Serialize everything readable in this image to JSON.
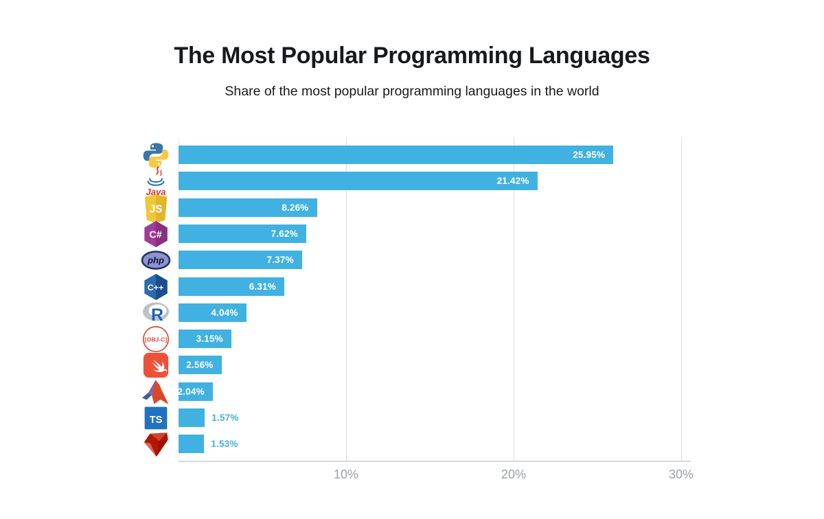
{
  "header": {
    "title": "The Most Popular Programming Languages",
    "subtitle": "Share of the most popular programming languages in the world"
  },
  "chart_data": {
    "type": "bar",
    "orientation": "horizontal",
    "title": "The Most Popular Programming Languages",
    "subtitle": "Share of the most popular programming languages in the world",
    "categories": [
      "Python",
      "Java",
      "JavaScript",
      "C#",
      "PHP",
      "C++",
      "R",
      "Objective-C",
      "Swift",
      "MATLAB",
      "TypeScript",
      "Ruby"
    ],
    "values": [
      25.95,
      21.42,
      8.26,
      7.62,
      7.37,
      6.31,
      4.04,
      3.15,
      2.56,
      2.04,
      1.57,
      1.53
    ],
    "value_labels": [
      "25.95%",
      "21.42%",
      "8.26%",
      "7.62%",
      "7.37%",
      "6.31%",
      "4.04%",
      "3.15%",
      "2.56%",
      "2.04%",
      "1.57%",
      "1.53%"
    ],
    "icons": [
      "python-icon",
      "java-icon",
      "javascript-icon",
      "csharp-icon",
      "php-icon",
      "cpp-icon",
      "r-icon",
      "objective-c-icon",
      "swift-icon",
      "matlab-icon",
      "typescript-icon",
      "ruby-icon"
    ],
    "xlabel": "",
    "ylabel": "",
    "x_ticks": [
      "10%",
      "20%",
      "30%"
    ],
    "x_tick_values": [
      10,
      20,
      30
    ],
    "xlim": [
      0,
      30
    ],
    "grid": "vertical",
    "legend": "none",
    "bar_color": "#41b1e1",
    "value_label_color_inside": "#ffffff",
    "value_label_color_outside": "#41b1e1",
    "tick_label_color": "#9aa0a6",
    "gridline_color": "#dcdcdc"
  }
}
